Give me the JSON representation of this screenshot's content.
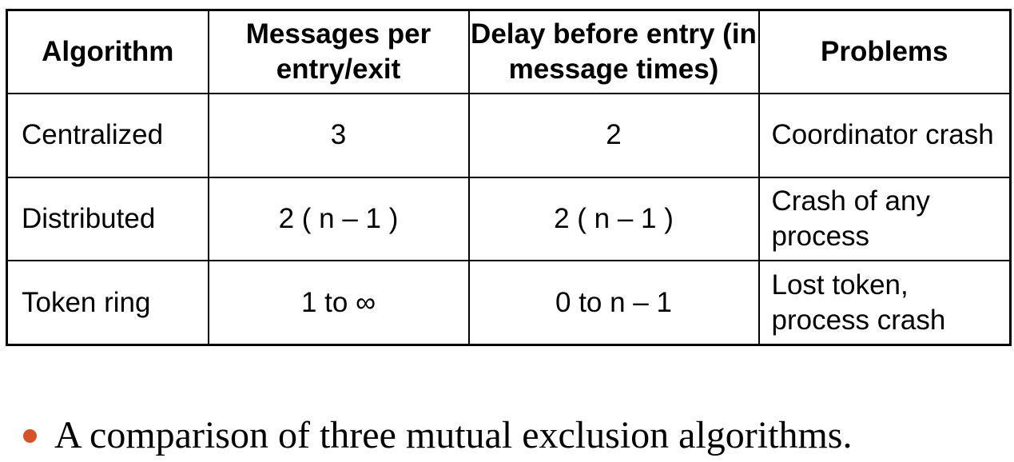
{
  "table": {
    "headers": [
      "Algorithm",
      "Messages per entry/exit",
      "Delay before entry (in message times)",
      "Problems"
    ],
    "rows": [
      {
        "algorithm": "Centralized",
        "messages": "3",
        "delay": "2",
        "problems": "Coordinator crash"
      },
      {
        "algorithm": "Distributed",
        "messages": "2 ( n – 1 )",
        "delay": "2 ( n – 1 )",
        "problems": "Crash of any process"
      },
      {
        "algorithm": "Token ring",
        "messages": "1 to ∞",
        "delay": "0 to n – 1",
        "problems": "Lost token, process crash"
      }
    ]
  },
  "caption": {
    "text": "A comparison of three mutual exclusion algorithms.",
    "bullet_color": "#d4532a"
  }
}
